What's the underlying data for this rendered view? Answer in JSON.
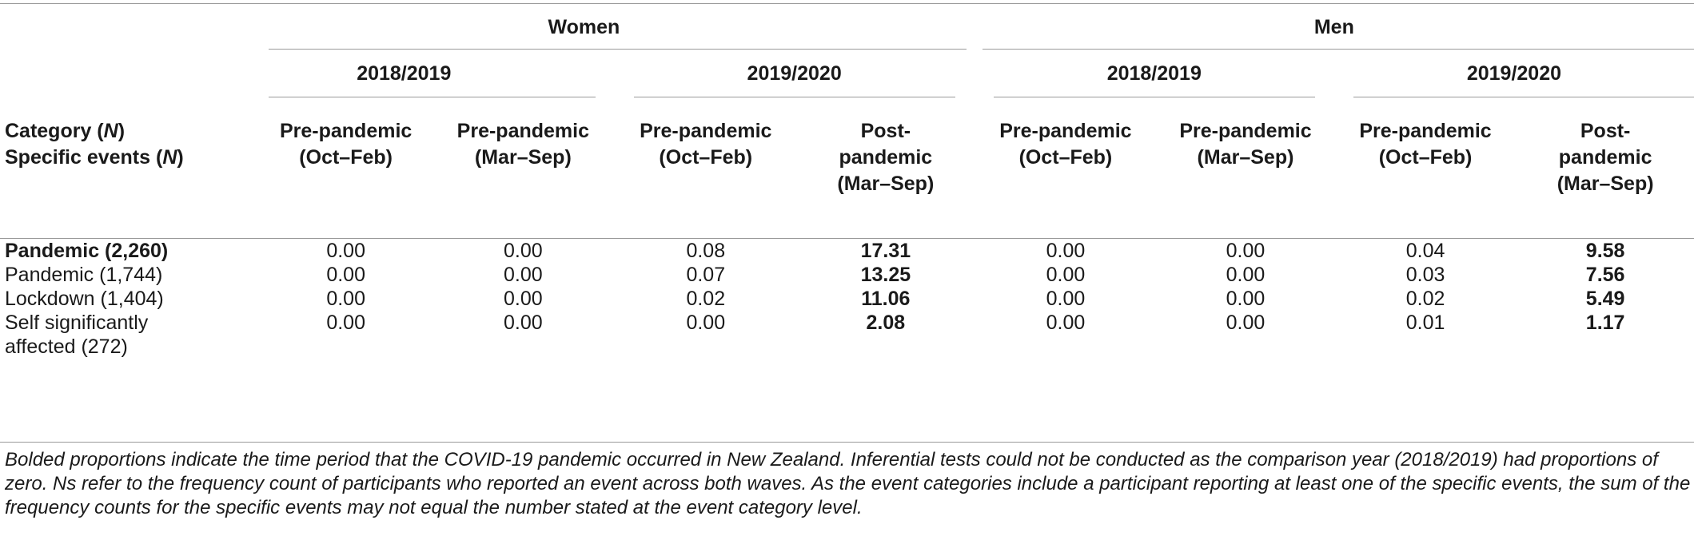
{
  "groups": {
    "women": "Women",
    "men": "Men"
  },
  "years": {
    "women_y1": "2018/2019",
    "women_y2": "2019/2020",
    "men_y1": "2018/2019",
    "men_y2": "2019/2020"
  },
  "category_header": {
    "line1_text": "Category (",
    "line1_n": "N",
    "line1_end": ")",
    "line2_text": "Specific events (",
    "line2_n": "N",
    "line2_end": ")"
  },
  "columns": [
    {
      "l1": "Pre-pandemic",
      "l2": "(Oct–Feb)",
      "l3": ""
    },
    {
      "l1": "Pre-pandemic",
      "l2": "(Mar–Sep)",
      "l3": ""
    },
    {
      "l1": "Pre-pandemic",
      "l2": "(Oct–Feb)",
      "l3": ""
    },
    {
      "l1": "Post-",
      "l2": "pandemic",
      "l3": "(Mar–Sep)"
    },
    {
      "l1": "Pre-pandemic",
      "l2": "(Oct–Feb)",
      "l3": ""
    },
    {
      "l1": "Pre-pandemic",
      "l2": "(Mar–Sep)",
      "l3": ""
    },
    {
      "l1": "Pre-pandemic",
      "l2": "(Oct–Feb)",
      "l3": ""
    },
    {
      "l1": "Post-",
      "l2": "pandemic",
      "l3": "(Mar–Sep)"
    }
  ],
  "rows": [
    {
      "category": "Pandemic (2,260)",
      "category_line2": "",
      "values": [
        "0.00",
        "0.00",
        "0.08",
        "17.31",
        "0.00",
        "0.00",
        "0.04",
        "9.58"
      ]
    },
    {
      "category": "Pandemic (1,744)",
      "category_line2": "",
      "values": [
        "0.00",
        "0.00",
        "0.07",
        "13.25",
        "0.00",
        "0.00",
        "0.03",
        "7.56"
      ]
    },
    {
      "category": "Lockdown (1,404)",
      "category_line2": "",
      "values": [
        "0.00",
        "0.00",
        "0.02",
        "11.06",
        "0.00",
        "0.00",
        "0.02",
        "5.49"
      ]
    },
    {
      "category": "Self significantly",
      "category_line2": "affected (272)",
      "values": [
        "0.00",
        "0.00",
        "0.00",
        "2.08",
        "0.00",
        "0.00",
        "0.01",
        "1.17"
      ]
    }
  ],
  "footnote": "Bolded proportions indicate the time period that the COVID-19 pandemic occurred in New Zealand. Inferential tests could not be conducted as the comparison year (2018/2019) had proportions of zero. Ns refer to the frequency count of participants who reported an event across both waves. As the event categories include a participant reporting at least one of the specific events, the sum of the frequency counts for the specific events may not equal the number stated at the event category level."
}
